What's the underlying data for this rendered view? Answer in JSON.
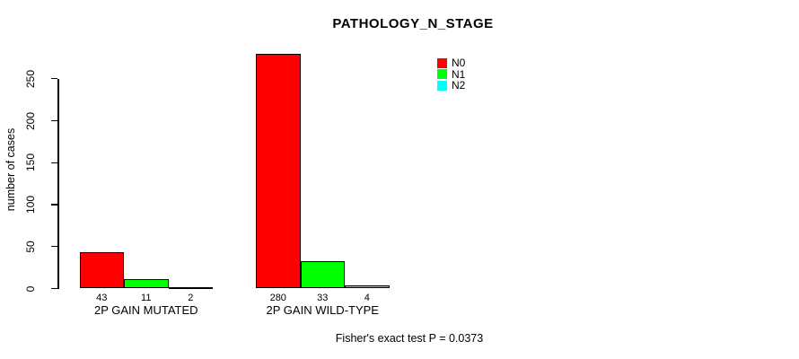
{
  "title": "PATHOLOGY_N_STAGE",
  "ylabel": "number of cases",
  "footer": "Fisher's exact test P = 0.0373",
  "legend": {
    "items": [
      {
        "label": "N0",
        "color": "#FF0000"
      },
      {
        "label": "N1",
        "color": "#00FF00"
      },
      {
        "label": "N2",
        "color": "#00FFFF"
      }
    ]
  },
  "chart_data": {
    "type": "bar",
    "grouped": true,
    "title": "PATHOLOGY_N_STAGE",
    "xlabel": "",
    "ylabel": "number of cases",
    "categories": [
      "2P GAIN MUTATED",
      "2P GAIN WILD-TYPE"
    ],
    "series": [
      {
        "name": "N0",
        "color": "#FF0000",
        "values": [
          43,
          280
        ]
      },
      {
        "name": "N1",
        "color": "#00FF00",
        "values": [
          11,
          33
        ]
      },
      {
        "name": "N2",
        "color": "#00FFFF",
        "values": [
          2,
          4
        ]
      }
    ],
    "bar_value_labels": [
      [
        "43",
        "11",
        "2"
      ],
      [
        "280",
        "33",
        "4"
      ]
    ],
    "yticks": [
      0,
      50,
      100,
      150,
      200,
      250
    ],
    "ylim": [
      0,
      280
    ],
    "grid": false,
    "legend_position": "inside-top-right",
    "annotation": "Fisher's exact test P = 0.0373"
  }
}
